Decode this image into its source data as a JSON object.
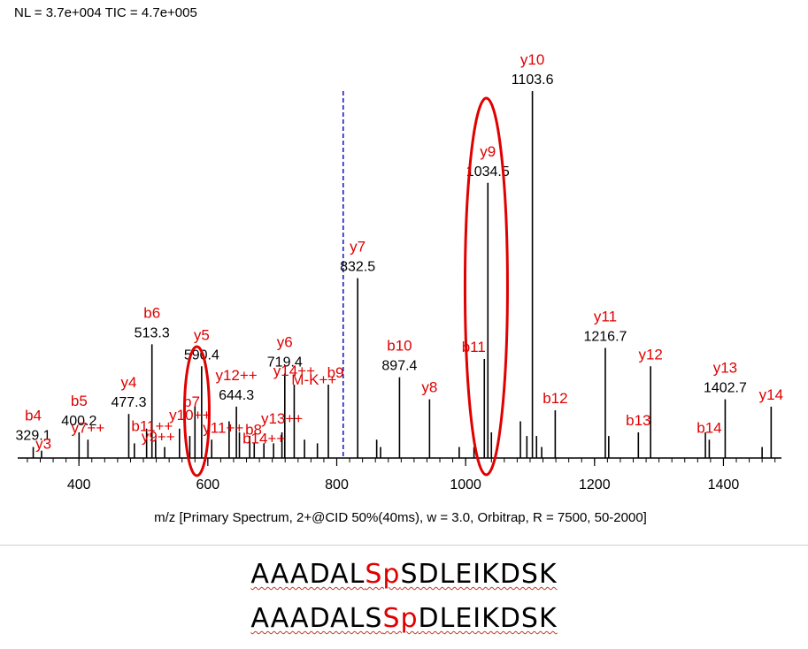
{
  "header": "NL = 3.7e+004 TIC = 4.7e+005",
  "chart_data": {
    "type": "bar",
    "title": "",
    "xlabel": "m/z [Primary Spectrum, 2+@CID 50%(40ms), w = 3.0, Orbitrap, R = 7500, 50-2000]",
    "ylabel": "",
    "xlim": [
      305,
      1490
    ],
    "ylim": [
      0,
      100
    ],
    "x_ticks": [
      400,
      600,
      800,
      1000,
      1200,
      1400
    ],
    "precursor_mz": 810,
    "peaks": [
      {
        "mz": 329.1,
        "intensity": 3
      },
      {
        "mz": 342,
        "intensity": 2
      },
      {
        "mz": 400.2,
        "intensity": 7
      },
      {
        "mz": 414,
        "intensity": 5
      },
      {
        "mz": 477.3,
        "intensity": 12
      },
      {
        "mz": 486,
        "intensity": 4
      },
      {
        "mz": 505,
        "intensity": 8
      },
      {
        "mz": 513.3,
        "intensity": 31
      },
      {
        "mz": 519,
        "intensity": 5
      },
      {
        "mz": 533,
        "intensity": 3
      },
      {
        "mz": 556,
        "intensity": 8
      },
      {
        "mz": 572,
        "intensity": 6
      },
      {
        "mz": 580,
        "intensity": 14
      },
      {
        "mz": 590.4,
        "intensity": 25
      },
      {
        "mz": 606,
        "intensity": 5
      },
      {
        "mz": 633,
        "intensity": 10
      },
      {
        "mz": 644.3,
        "intensity": 14
      },
      {
        "mz": 649,
        "intensity": 7
      },
      {
        "mz": 665,
        "intensity": 6
      },
      {
        "mz": 672,
        "intensity": 4
      },
      {
        "mz": 687,
        "intensity": 4
      },
      {
        "mz": 702,
        "intensity": 4
      },
      {
        "mz": 715,
        "intensity": 7
      },
      {
        "mz": 719.4,
        "intensity": 23
      },
      {
        "mz": 734,
        "intensity": 20
      },
      {
        "mz": 750,
        "intensity": 5
      },
      {
        "mz": 770,
        "intensity": 4
      },
      {
        "mz": 787,
        "intensity": 20
      },
      {
        "mz": 832.5,
        "intensity": 49
      },
      {
        "mz": 862,
        "intensity": 5
      },
      {
        "mz": 868,
        "intensity": 3
      },
      {
        "mz": 897.4,
        "intensity": 22
      },
      {
        "mz": 944,
        "intensity": 16
      },
      {
        "mz": 990,
        "intensity": 3
      },
      {
        "mz": 1013,
        "intensity": 3
      },
      {
        "mz": 1029,
        "intensity": 27
      },
      {
        "mz": 1034.5,
        "intensity": 75
      },
      {
        "mz": 1040,
        "intensity": 7
      },
      {
        "mz": 1085,
        "intensity": 10
      },
      {
        "mz": 1095,
        "intensity": 6
      },
      {
        "mz": 1103.6,
        "intensity": 100
      },
      {
        "mz": 1110,
        "intensity": 6
      },
      {
        "mz": 1118,
        "intensity": 3
      },
      {
        "mz": 1139,
        "intensity": 13
      },
      {
        "mz": 1216.7,
        "intensity": 30
      },
      {
        "mz": 1222,
        "intensity": 6
      },
      {
        "mz": 1268,
        "intensity": 7
      },
      {
        "mz": 1287,
        "intensity": 25
      },
      {
        "mz": 1372,
        "intensity": 7
      },
      {
        "mz": 1378,
        "intensity": 5
      },
      {
        "mz": 1402.7,
        "intensity": 16
      },
      {
        "mz": 1460,
        "intensity": 3
      },
      {
        "mz": 1474,
        "intensity": 14
      }
    ],
    "annotations": [
      {
        "ion": "b4",
        "mz_label": "329.1",
        "mz": 329.1
      },
      {
        "ion": "y3",
        "mz_label": "",
        "mz": 345
      },
      {
        "ion": "b5",
        "mz_label": "400.2",
        "mz": 400.2
      },
      {
        "ion": "y7++",
        "mz_label": "",
        "mz": 414
      },
      {
        "ion": "y4",
        "mz_label": "477.3",
        "mz": 477.3
      },
      {
        "ion": "b6",
        "mz_label": "513.3",
        "mz": 513.3
      },
      {
        "ion": "b11++",
        "mz_label": "",
        "mz": 519
      },
      {
        "ion": "y9++",
        "mz_label": "",
        "mz": 523
      },
      {
        "ion": "y10++",
        "mz_label": "",
        "mz": 556
      },
      {
        "ion": "y5",
        "mz_label": "590.4",
        "mz": 590.4
      },
      {
        "ion": "b7",
        "mz_label": "",
        "mz": 583
      },
      {
        "ion": "y11++",
        "mz_label": "",
        "mz": 613
      },
      {
        "ion": "y12++",
        "mz_label": "644.3",
        "mz": 644.3
      },
      {
        "ion": "b8",
        "mz_label": "",
        "mz": 671
      },
      {
        "ion": "b14++",
        "mz_label": "",
        "mz": 676
      },
      {
        "ion": "y13++",
        "mz_label": "",
        "mz": 715
      },
      {
        "ion": "M-K++",
        "mz_label": "",
        "mz": 740
      },
      {
        "ion": "y6",
        "mz_label": "719.4",
        "mz": 719.4
      },
      {
        "ion": "y14++",
        "mz_label": "",
        "mz": 734
      },
      {
        "ion": "b9",
        "mz_label": "",
        "mz": 787
      },
      {
        "ion": "y7",
        "mz_label": "832.5",
        "mz": 832.5
      },
      {
        "ion": "b10",
        "mz_label": "897.4",
        "mz": 897.4
      },
      {
        "ion": "y8",
        "mz_label": "",
        "mz": 944
      },
      {
        "ion": "y9",
        "mz_label": "1034.5",
        "mz": 1034.5
      },
      {
        "ion": "b11",
        "mz_label": "",
        "mz": 1029
      },
      {
        "ion": "y10",
        "mz_label": "1103.6",
        "mz": 1103.6
      },
      {
        "ion": "b12",
        "mz_label": "",
        "mz": 1139
      },
      {
        "ion": "y11",
        "mz_label": "1216.7",
        "mz": 1216.7
      },
      {
        "ion": "y12",
        "mz_label": "",
        "mz": 1287
      },
      {
        "ion": "b13",
        "mz_label": "",
        "mz": 1268
      },
      {
        "ion": "y13",
        "mz_label": "1402.7",
        "mz": 1402.7
      },
      {
        "ion": "b14",
        "mz_label": "",
        "mz": 1378
      },
      {
        "ion": "y14",
        "mz_label": "",
        "mz": 1474
      }
    ],
    "highlight_peaks": [
      {
        "mz": 583
      },
      {
        "mz": 1032
      }
    ],
    "colors": {
      "ion_label": "#e00000",
      "mz_label": "#000000",
      "precursor": "#1010c0",
      "highlight": "#e00000"
    }
  },
  "sequences": [
    {
      "pre": "AAADAL",
      "mod": "Sp",
      "post": "SDLEIKDSK"
    },
    {
      "pre": "AAADALS",
      "mod": "Sp",
      "post": "DLEIKDSK"
    }
  ]
}
